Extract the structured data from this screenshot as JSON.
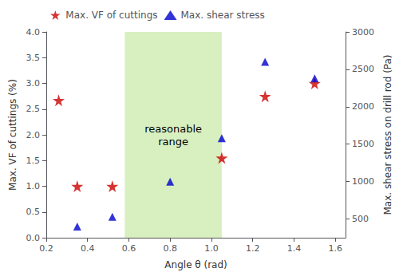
{
  "chart_data": {
    "type": "scatter",
    "xlabel": "Angle θ (rad)",
    "ylabel": "Max. VF of cuttings (%)",
    "y2label": "Max. shear stress on drill rod (Pa)",
    "xlim": [
      0.2,
      1.65
    ],
    "xticks": [
      0.2,
      0.4,
      0.6,
      0.8,
      {
        "value": 1.0,
        "label": "1.0"
      },
      1.2,
      1.4,
      1.6
    ],
    "ylim": [
      0.0,
      4.0
    ],
    "yticks": [
      {
        "value": 0.0,
        "label": "0.0"
      },
      0.5,
      {
        "value": 1.0,
        "label": "1.0"
      },
      1.5,
      {
        "value": 2.0,
        "label": "2.0"
      },
      2.5,
      {
        "value": 3.0,
        "label": "3.0"
      },
      3.5,
      {
        "value": 4.0,
        "label": "4.0"
      }
    ],
    "y2lim": [
      250,
      3000
    ],
    "y2ticks": [
      500,
      1000,
      1500,
      2000,
      2500,
      3000
    ],
    "grid": false,
    "legend": "upper left",
    "series": [
      {
        "name": "Max. VF of cuttings",
        "color": "#cc0000",
        "marker": "star",
        "x": [
          0.26,
          0.35,
          0.52,
          1.05,
          1.26,
          1.5
        ],
        "values": [
          2.67,
          1.0,
          1.0,
          1.55,
          2.75,
          3.0
        ]
      },
      {
        "name": "Max. shear stress",
        "color": "#0000cc",
        "marker": "triangle",
        "axis": "y2",
        "x": [
          0.35,
          0.52,
          0.8,
          1.05,
          1.26,
          1.5
        ],
        "values": [
          400,
          530,
          1000,
          1580,
          2600,
          2380
        ]
      }
    ],
    "shaded_range": {
      "x": [
        0.58,
        1.05
      ],
      "color": "#d8f0c0"
    },
    "annotations": [
      {
        "text": "reasonable\nrange",
        "x": 0.815,
        "y": 2.0
      }
    ]
  }
}
